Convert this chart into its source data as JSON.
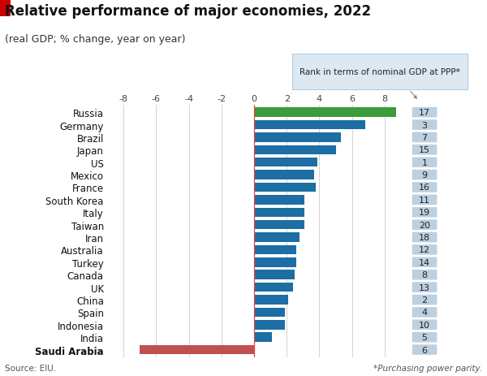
{
  "title": "Relative performance of major economies, 2022",
  "subtitle": "(real GDP; % change, year on year)",
  "annotation_box": "Rank in terms of nominal GDP at PPP*",
  "footnote_left": "Source: EIU.",
  "footnote_right": "*Purchasing power parity.",
  "countries": [
    "Saudi Arabia",
    "India",
    "Indonesia",
    "Spain",
    "China",
    "UK",
    "Canada",
    "Turkey",
    "Australia",
    "Iran",
    "Taiwan",
    "Italy",
    "South Korea",
    "France",
    "Mexico",
    "US",
    "Japan",
    "Brazil",
    "Germany",
    "Russia"
  ],
  "values": [
    8.7,
    6.8,
    5.3,
    5.0,
    3.9,
    3.7,
    3.8,
    3.1,
    3.1,
    3.1,
    2.8,
    2.6,
    2.6,
    2.5,
    2.4,
    2.1,
    1.9,
    1.9,
    1.1,
    -7.0
  ],
  "ranks": [
    17,
    3,
    7,
    15,
    1,
    9,
    16,
    11,
    19,
    20,
    18,
    12,
    14,
    8,
    13,
    2,
    4,
    10,
    5,
    6
  ],
  "bar_colors": [
    "#3a9b3a",
    "#1c6ea4",
    "#1c6ea4",
    "#1c6ea4",
    "#1c6ea4",
    "#1c6ea4",
    "#1c6ea4",
    "#1c6ea4",
    "#1c6ea4",
    "#1c6ea4",
    "#1c6ea4",
    "#1c6ea4",
    "#1c6ea4",
    "#1c6ea4",
    "#1c6ea4",
    "#1c6ea4",
    "#1c6ea4",
    "#1c6ea4",
    "#1c6ea4",
    "#c0504d"
  ],
  "rank_bg_color": "#bcd0e0",
  "rank_text_color": "#222222",
  "xlim": [
    -9.0,
    9.5
  ],
  "xticks": [
    -8,
    -6,
    -4,
    -2,
    0,
    2,
    4,
    6,
    8
  ],
  "title_fontsize": 12,
  "subtitle_fontsize": 9,
  "label_fontsize": 8.5,
  "tick_fontsize": 8,
  "rank_fontsize": 8,
  "top_rect_color": "#cc0000",
  "background_color": "#ffffff",
  "grid_color": "#cccccc",
  "zero_line_color": "#e84040"
}
